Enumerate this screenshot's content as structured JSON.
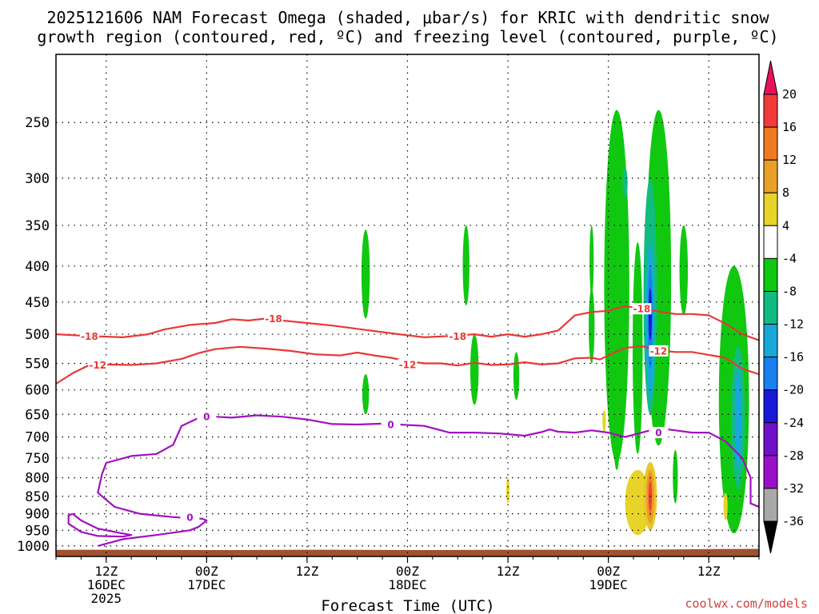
{
  "chart_data": {
    "type": "heatmap",
    "title_line1": "2025121606 NAM Forecast Omega (shaded, μbar/s) for KRIC with dendritic snow",
    "title_line2": "growth region (contoured, red, ºC) and freezing level (contoured, purple, ºC)",
    "xlabel": "Forecast Time (UTC)",
    "credit": "coolwx.com/models",
    "x_range_hours": [
      0,
      84
    ],
    "y_scale": "log",
    "y_range": [
      1035,
      200
    ],
    "y_ticks": [
      250,
      300,
      350,
      400,
      450,
      500,
      550,
      600,
      650,
      700,
      750,
      800,
      850,
      900,
      950,
      1000
    ],
    "x_ticks": [
      {
        "hour": 6,
        "line1": "12Z",
        "line2": "16DEC",
        "line3": "2025"
      },
      {
        "hour": 18,
        "line1": "00Z",
        "line2": "17DEC",
        "line3": ""
      },
      {
        "hour": 30,
        "line1": "12Z",
        "line2": "",
        "line3": ""
      },
      {
        "hour": 42,
        "line1": "00Z",
        "line2": "18DEC",
        "line3": ""
      },
      {
        "hour": 54,
        "line1": "12Z",
        "line2": "",
        "line3": ""
      },
      {
        "hour": 66,
        "line1": "00Z",
        "line2": "19DEC",
        "line3": ""
      },
      {
        "hour": 78,
        "line1": "12Z",
        "line2": "",
        "line3": ""
      }
    ],
    "grid": true,
    "colorbar": {
      "labels": [
        "20",
        "16",
        "12",
        "8",
        "4",
        "-4",
        "-8",
        "-12",
        "-16",
        "-20",
        "-24",
        "-28",
        "-32",
        "-36"
      ],
      "colors": [
        "#e8105a",
        "#f23a3a",
        "#f07a20",
        "#e8a028",
        "#e8d428",
        "#ffffff",
        "#10c810",
        "#10bc80",
        "#18a8d8",
        "#1880f0",
        "#1818d8",
        "#7010c8",
        "#9a10c8",
        "#a8a8a8",
        "#000000"
      ]
    },
    "series": [
      {
        "name": "-18",
        "color": "#e83838",
        "points": [
          [
            0,
            500
          ],
          [
            4,
            503
          ],
          [
            8,
            505
          ],
          [
            11,
            500
          ],
          [
            13,
            492
          ],
          [
            16,
            485
          ],
          [
            19,
            482
          ],
          [
            21,
            476
          ],
          [
            23,
            478
          ],
          [
            25,
            475
          ],
          [
            27,
            478
          ],
          [
            30,
            482
          ],
          [
            33,
            486
          ],
          [
            37,
            493
          ],
          [
            41,
            500
          ],
          [
            44,
            505
          ],
          [
            47,
            503
          ],
          [
            50,
            500
          ],
          [
            52,
            504
          ],
          [
            54,
            500
          ],
          [
            56,
            504
          ],
          [
            58,
            500
          ],
          [
            60,
            494
          ],
          [
            62,
            470
          ],
          [
            64,
            465
          ],
          [
            66,
            463
          ],
          [
            68,
            456
          ],
          [
            70,
            460
          ],
          [
            72,
            464
          ],
          [
            74,
            468
          ],
          [
            76,
            468
          ],
          [
            78,
            470
          ],
          [
            80,
            483
          ],
          [
            82,
            500
          ],
          [
            84,
            510
          ]
        ],
        "labels": [
          [
            4,
            503
          ],
          [
            26,
            475
          ],
          [
            48,
            503
          ],
          [
            70,
            460
          ]
        ]
      },
      {
        "name": "-12",
        "color": "#e83838",
        "points": [
          [
            0,
            588
          ],
          [
            2,
            568
          ],
          [
            4,
            553
          ],
          [
            6,
            552
          ],
          [
            9,
            553
          ],
          [
            12,
            550
          ],
          [
            15,
            542
          ],
          [
            17,
            532
          ],
          [
            19,
            525
          ],
          [
            22,
            521
          ],
          [
            25,
            524
          ],
          [
            28,
            528
          ],
          [
            31,
            534
          ],
          [
            34,
            536
          ],
          [
            36,
            531
          ],
          [
            38,
            536
          ],
          [
            40,
            540
          ],
          [
            42,
            546
          ],
          [
            44,
            550
          ],
          [
            46,
            550
          ],
          [
            48,
            554
          ],
          [
            50,
            549
          ],
          [
            52,
            553
          ],
          [
            54,
            552
          ],
          [
            56,
            548
          ],
          [
            58,
            552
          ],
          [
            60,
            550
          ],
          [
            62,
            541
          ],
          [
            64,
            540
          ],
          [
            65,
            543
          ],
          [
            66,
            536
          ],
          [
            68,
            523
          ],
          [
            70,
            520
          ],
          [
            72,
            527
          ],
          [
            74,
            530
          ],
          [
            76,
            530
          ],
          [
            78,
            535
          ],
          [
            80,
            540
          ],
          [
            82,
            560
          ],
          [
            84,
            570
          ]
        ],
        "labels": [
          [
            5,
            553
          ],
          [
            42,
            552
          ],
          [
            72,
            528
          ]
        ]
      },
      {
        "name": "0 (freezing level)",
        "color": "#a010c0",
        "points": [
          [
            5,
            1000
          ],
          [
            8,
            978
          ],
          [
            12,
            965
          ],
          [
            16,
            950
          ],
          [
            17,
            940
          ],
          [
            18,
            920
          ],
          [
            17.5,
            915
          ],
          [
            14,
            910
          ],
          [
            10,
            900
          ],
          [
            7,
            880
          ],
          [
            5,
            840
          ],
          [
            5.5,
            790
          ],
          [
            6,
            762
          ],
          [
            9,
            745
          ],
          [
            12,
            740
          ],
          [
            14,
            718
          ],
          [
            15,
            675
          ],
          [
            17,
            658
          ],
          [
            19,
            655
          ],
          [
            21,
            657
          ],
          [
            24,
            652
          ],
          [
            27,
            655
          ],
          [
            30,
            661
          ],
          [
            33,
            671
          ],
          [
            36,
            672
          ],
          [
            39,
            670
          ],
          [
            41,
            672
          ],
          [
            44,
            675
          ],
          [
            47,
            690
          ],
          [
            50,
            690
          ],
          [
            53,
            692
          ],
          [
            56,
            697
          ],
          [
            58,
            689
          ],
          [
            59,
            683
          ],
          [
            60,
            688
          ],
          [
            62,
            690
          ],
          [
            64,
            685
          ],
          [
            66,
            690
          ],
          [
            68,
            700
          ],
          [
            70,
            690
          ],
          [
            72,
            680
          ],
          [
            74,
            685
          ],
          [
            76,
            690
          ],
          [
            78,
            690
          ],
          [
            80,
            710
          ],
          [
            82,
            750
          ],
          [
            83,
            800
          ],
          [
            83,
            870
          ],
          [
            84,
            880
          ]
        ],
        "labels": [
          [
            18,
            655
          ],
          [
            40,
            672
          ],
          [
            72,
            690
          ],
          [
            16,
            910
          ]
        ]
      },
      {
        "name": "0 (lower loop)",
        "color": "#a010c0",
        "points": [
          [
            2,
            900
          ],
          [
            3,
            920
          ],
          [
            5,
            945
          ],
          [
            8,
            960
          ],
          [
            9,
            965
          ],
          [
            8,
            970
          ],
          [
            5,
            968
          ],
          [
            3,
            955
          ],
          [
            1.5,
            930
          ],
          [
            1.5,
            905
          ],
          [
            2,
            900
          ]
        ],
        "labels": []
      }
    ],
    "shaded_regions": [
      {
        "bin": "-8",
        "center": [
          37.0,
          400
        ],
        "width_h": 1.0,
        "pressure": [
          355,
          475
        ]
      },
      {
        "bin": "-8",
        "center": [
          37.0,
          610
        ],
        "width_h": 0.8,
        "pressure": [
          570,
          650
        ]
      },
      {
        "bin": "-8",
        "center": [
          49.0,
          395
        ],
        "width_h": 0.8,
        "pressure": [
          350,
          455
        ]
      },
      {
        "bin": "-8",
        "center": [
          50.0,
          560
        ],
        "width_h": 1.0,
        "pressure": [
          500,
          630
        ]
      },
      {
        "bin": "-8",
        "center": [
          55.0,
          575
        ],
        "width_h": 0.7,
        "pressure": [
          530,
          620
        ]
      },
      {
        "bin": "-8",
        "center": [
          64.0,
          480
        ],
        "width_h": 0.7,
        "pressure": [
          430,
          550
        ]
      },
      {
        "bin": "-8",
        "center": [
          64.0,
          410
        ],
        "width_h": 0.5,
        "pressure": [
          350,
          440
        ]
      },
      {
        "bin": "-8",
        "center": [
          67.0,
          450
        ],
        "width_h": 3.0,
        "pressure": [
          240,
          760
        ]
      },
      {
        "bin": "-8",
        "center": [
          72.0,
          450
        ],
        "width_h": 3.0,
        "pressure": [
          240,
          720
        ]
      },
      {
        "bin": "-8",
        "center": [
          69.5,
          540
        ],
        "width_h": 1.2,
        "pressure": [
          370,
          740
        ]
      },
      {
        "bin": "-8",
        "center": [
          75.0,
          400
        ],
        "width_h": 1.0,
        "pressure": [
          350,
          470
        ]
      },
      {
        "bin": "-8",
        "center": [
          81.0,
          610
        ],
        "width_h": 3.6,
        "pressure": [
          400,
          960
        ]
      },
      {
        "bin": "-8",
        "center": [
          74.0,
          780
        ],
        "width_h": 0.6,
        "pressure": [
          730,
          870
        ]
      },
      {
        "bin": "-8",
        "center": [
          67.0,
          750
        ],
        "width_h": 0.7,
        "pressure": [
          650,
          780
        ]
      },
      {
        "bin": "-8",
        "center": [
          69.0,
          900
        ],
        "width_h": 0.9,
        "pressure": [
          895,
          910
        ]
      },
      {
        "bin": "-12",
        "center": [
          71.0,
          420
        ],
        "width_h": 1.6,
        "pressure": [
          300,
          650
        ]
      },
      {
        "bin": "-12",
        "center": [
          68.0,
          300
        ],
        "width_h": 0.6,
        "pressure": [
          290,
          320
        ]
      },
      {
        "bin": "-12",
        "center": [
          81.5,
          600
        ],
        "width_h": 1.6,
        "pressure": [
          520,
          830
        ]
      },
      {
        "bin": "-16",
        "center": [
          71.0,
          450
        ],
        "width_h": 1.0,
        "pressure": [
          370,
          620
        ]
      },
      {
        "bin": "-16",
        "center": [
          81.5,
          620
        ],
        "width_h": 0.8,
        "pressure": [
          560,
          780
        ]
      },
      {
        "bin": "-20",
        "center": [
          71.0,
          450
        ],
        "width_h": 0.6,
        "pressure": [
          400,
          560
        ]
      },
      {
        "bin": "-24",
        "center": [
          71.0,
          450
        ],
        "width_h": 0.3,
        "pressure": [
          430,
          510
        ]
      },
      {
        "bin": "4",
        "center": [
          69.5,
          850
        ],
        "width_h": 3.0,
        "pressure": [
          780,
          965
        ]
      },
      {
        "bin": "4",
        "center": [
          54.0,
          830
        ],
        "width_h": 0.4,
        "pressure": [
          800,
          870
        ]
      },
      {
        "bin": "4",
        "center": [
          65.5,
          660
        ],
        "width_h": 0.4,
        "pressure": [
          640,
          690
        ]
      },
      {
        "bin": "4",
        "center": [
          80.0,
          870
        ],
        "width_h": 0.5,
        "pressure": [
          840,
          920
        ]
      },
      {
        "bin": "8",
        "center": [
          71.0,
          830
        ],
        "width_h": 1.6,
        "pressure": [
          760,
          950
        ]
      },
      {
        "bin": "12",
        "center": [
          71.0,
          830
        ],
        "width_h": 1.0,
        "pressure": [
          780,
          930
        ]
      },
      {
        "bin": "16",
        "center": [
          71.0,
          830
        ],
        "width_h": 0.5,
        "pressure": [
          790,
          910
        ]
      },
      {
        "bin": "20",
        "center": [
          71.0,
          840
        ],
        "width_h": 0.2,
        "pressure": [
          810,
          890
        ]
      }
    ],
    "terrain": {
      "color": "#a0522d",
      "surface_pressure": 1013
    }
  }
}
